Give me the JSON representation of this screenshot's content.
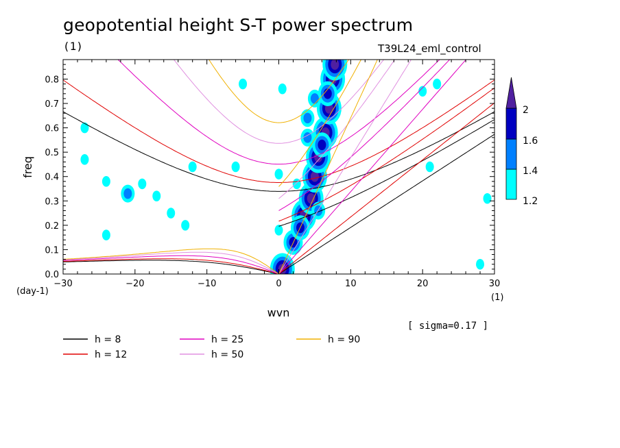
{
  "header": {
    "title": "geopotential height S-T power spectrum",
    "subtitle": "(1)",
    "run_name": "T39L24_eml_control"
  },
  "annotation": "[ sigma=0.17 ]",
  "chart_data": {
    "type": "contour",
    "xlabel": "wvn",
    "ylabel": "freq",
    "x_unit": "(1)",
    "y_unit": "(day-1)",
    "xlim": [
      -30,
      30
    ],
    "ylim": [
      0,
      0.88
    ],
    "x_ticks": [
      -30,
      -20,
      -10,
      0,
      10,
      20,
      30
    ],
    "y_ticks": [
      0.0,
      0.1,
      0.2,
      0.3,
      0.4,
      0.5,
      0.6,
      0.7,
      0.8
    ],
    "colorbar": {
      "levels": [
        1.2,
        1.4,
        1.6,
        2
      ],
      "colors": [
        "#00ffff",
        "#0080ff",
        "#0000c0",
        "#5020a0"
      ],
      "labels": [
        "1.2",
        "1.4",
        "1.6",
        "2"
      ]
    },
    "dispersion_curves": [
      {
        "label": "h =  8",
        "h": 8,
        "color": "#000000"
      },
      {
        "label": "h = 12",
        "h": 12,
        "color": "#e00000"
      },
      {
        "label": "h = 25",
        "h": 25,
        "color": "#e000c0"
      },
      {
        "label": "h = 50",
        "h": 50,
        "color": "#e090e0"
      },
      {
        "label": "h = 90",
        "h": 90,
        "color": "#f0b000"
      }
    ],
    "spectral_peaks": [
      {
        "wvn": 0.5,
        "freq": 0.02,
        "level": 2
      },
      {
        "wvn": 3.5,
        "freq": 0.24,
        "level": 2
      },
      {
        "wvn": 4.5,
        "freq": 0.31,
        "level": 2
      },
      {
        "wvn": 5.0,
        "freq": 0.4,
        "level": 2
      },
      {
        "wvn": 5.5,
        "freq": 0.48,
        "level": 2
      },
      {
        "wvn": 6.5,
        "freq": 0.58,
        "level": 2
      },
      {
        "wvn": 7.0,
        "freq": 0.68,
        "level": 2
      },
      {
        "wvn": 7.5,
        "freq": 0.8,
        "level": 2
      },
      {
        "wvn": 7.8,
        "freq": 0.86,
        "level": 2
      },
      {
        "wvn": 2.0,
        "freq": 0.13,
        "level": 1.6
      },
      {
        "wvn": 3.0,
        "freq": 0.19,
        "level": 1.6
      },
      {
        "wvn": 6.0,
        "freq": 0.53,
        "level": 1.6
      },
      {
        "wvn": 6.8,
        "freq": 0.74,
        "level": 1.6
      },
      {
        "wvn": 5.0,
        "freq": 0.72,
        "level": 1.4
      },
      {
        "wvn": 4.0,
        "freq": 0.56,
        "level": 1.4
      },
      {
        "wvn": 5.5,
        "freq": 0.26,
        "level": 1.4
      },
      {
        "wvn": 4.0,
        "freq": 0.64,
        "level": 1.4
      },
      {
        "wvn": 2.5,
        "freq": 0.37,
        "level": 1.2
      },
      {
        "wvn": -5.0,
        "freq": 0.78,
        "level": 1.2
      },
      {
        "wvn": 0.5,
        "freq": 0.76,
        "level": 1.2
      },
      {
        "wvn": -21.0,
        "freq": 0.33,
        "level": 1.4
      },
      {
        "wvn": -24.0,
        "freq": 0.38,
        "level": 1.2
      },
      {
        "wvn": -19.0,
        "freq": 0.37,
        "level": 1.2
      },
      {
        "wvn": -27.0,
        "freq": 0.47,
        "level": 1.2
      },
      {
        "wvn": -15.0,
        "freq": 0.25,
        "level": 1.2
      },
      {
        "wvn": -6.0,
        "freq": 0.44,
        "level": 1.2
      },
      {
        "wvn": -12.0,
        "freq": 0.44,
        "level": 1.2
      },
      {
        "wvn": 0.0,
        "freq": 0.41,
        "level": 1.2
      },
      {
        "wvn": 0.0,
        "freq": 0.18,
        "level": 1.2
      },
      {
        "wvn": -24.0,
        "freq": 0.16,
        "level": 1.2
      },
      {
        "wvn": -13.0,
        "freq": 0.2,
        "level": 1.2
      },
      {
        "wvn": 20.0,
        "freq": 0.75,
        "level": 1.2
      },
      {
        "wvn": 21.0,
        "freq": 0.44,
        "level": 1.2
      },
      {
        "wvn": 29.0,
        "freq": 0.31,
        "level": 1.2
      },
      {
        "wvn": 28.0,
        "freq": 0.04,
        "level": 1.2
      },
      {
        "wvn": 22.0,
        "freq": 0.78,
        "level": 1.2
      },
      {
        "wvn": -27.0,
        "freq": 0.6,
        "level": 1.2
      },
      {
        "wvn": -17.0,
        "freq": 0.32,
        "level": 1.2
      }
    ]
  }
}
